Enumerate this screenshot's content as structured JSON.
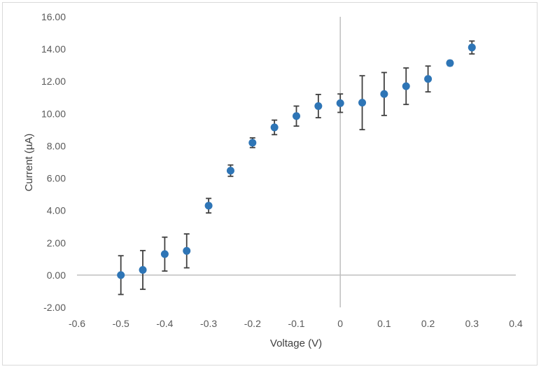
{
  "chart_data": {
    "type": "scatter",
    "title": "",
    "xlabel": "Voltage (V)",
    "ylabel": "Current (µA)",
    "xlim": [
      -0.6,
      0.4
    ],
    "ylim": [
      -2.0,
      16.0
    ],
    "x_ticks": [
      "-0.6",
      "-0.5",
      "-0.4",
      "-0.3",
      "-0.2",
      "-0.1",
      "0",
      "0.1",
      "0.2",
      "0.3",
      "0.4"
    ],
    "y_ticks": [
      "-2.00",
      "0.00",
      "2.00",
      "4.00",
      "6.00",
      "8.00",
      "10.00",
      "12.00",
      "14.00",
      "16.00"
    ],
    "grid": false,
    "marker_color": "#2e75b6",
    "errorbar_color": "#404040",
    "series": [
      {
        "x": [
          -0.5,
          -0.45,
          -0.4,
          -0.35,
          -0.3,
          -0.25,
          -0.2,
          -0.15,
          -0.1,
          -0.05,
          0.0,
          0.05,
          0.1,
          0.15,
          0.2,
          0.25,
          0.3
        ],
        "y": [
          0.0,
          0.32,
          1.3,
          1.5,
          4.3,
          6.47,
          8.2,
          9.15,
          9.85,
          10.47,
          10.65,
          10.68,
          11.22,
          11.7,
          12.15,
          13.13,
          14.1
        ],
        "err": [
          1.2,
          1.2,
          1.05,
          1.05,
          0.45,
          0.35,
          0.3,
          0.45,
          0.62,
          0.72,
          0.57,
          1.67,
          1.33,
          1.13,
          0.8,
          0.15,
          0.4
        ]
      }
    ]
  }
}
